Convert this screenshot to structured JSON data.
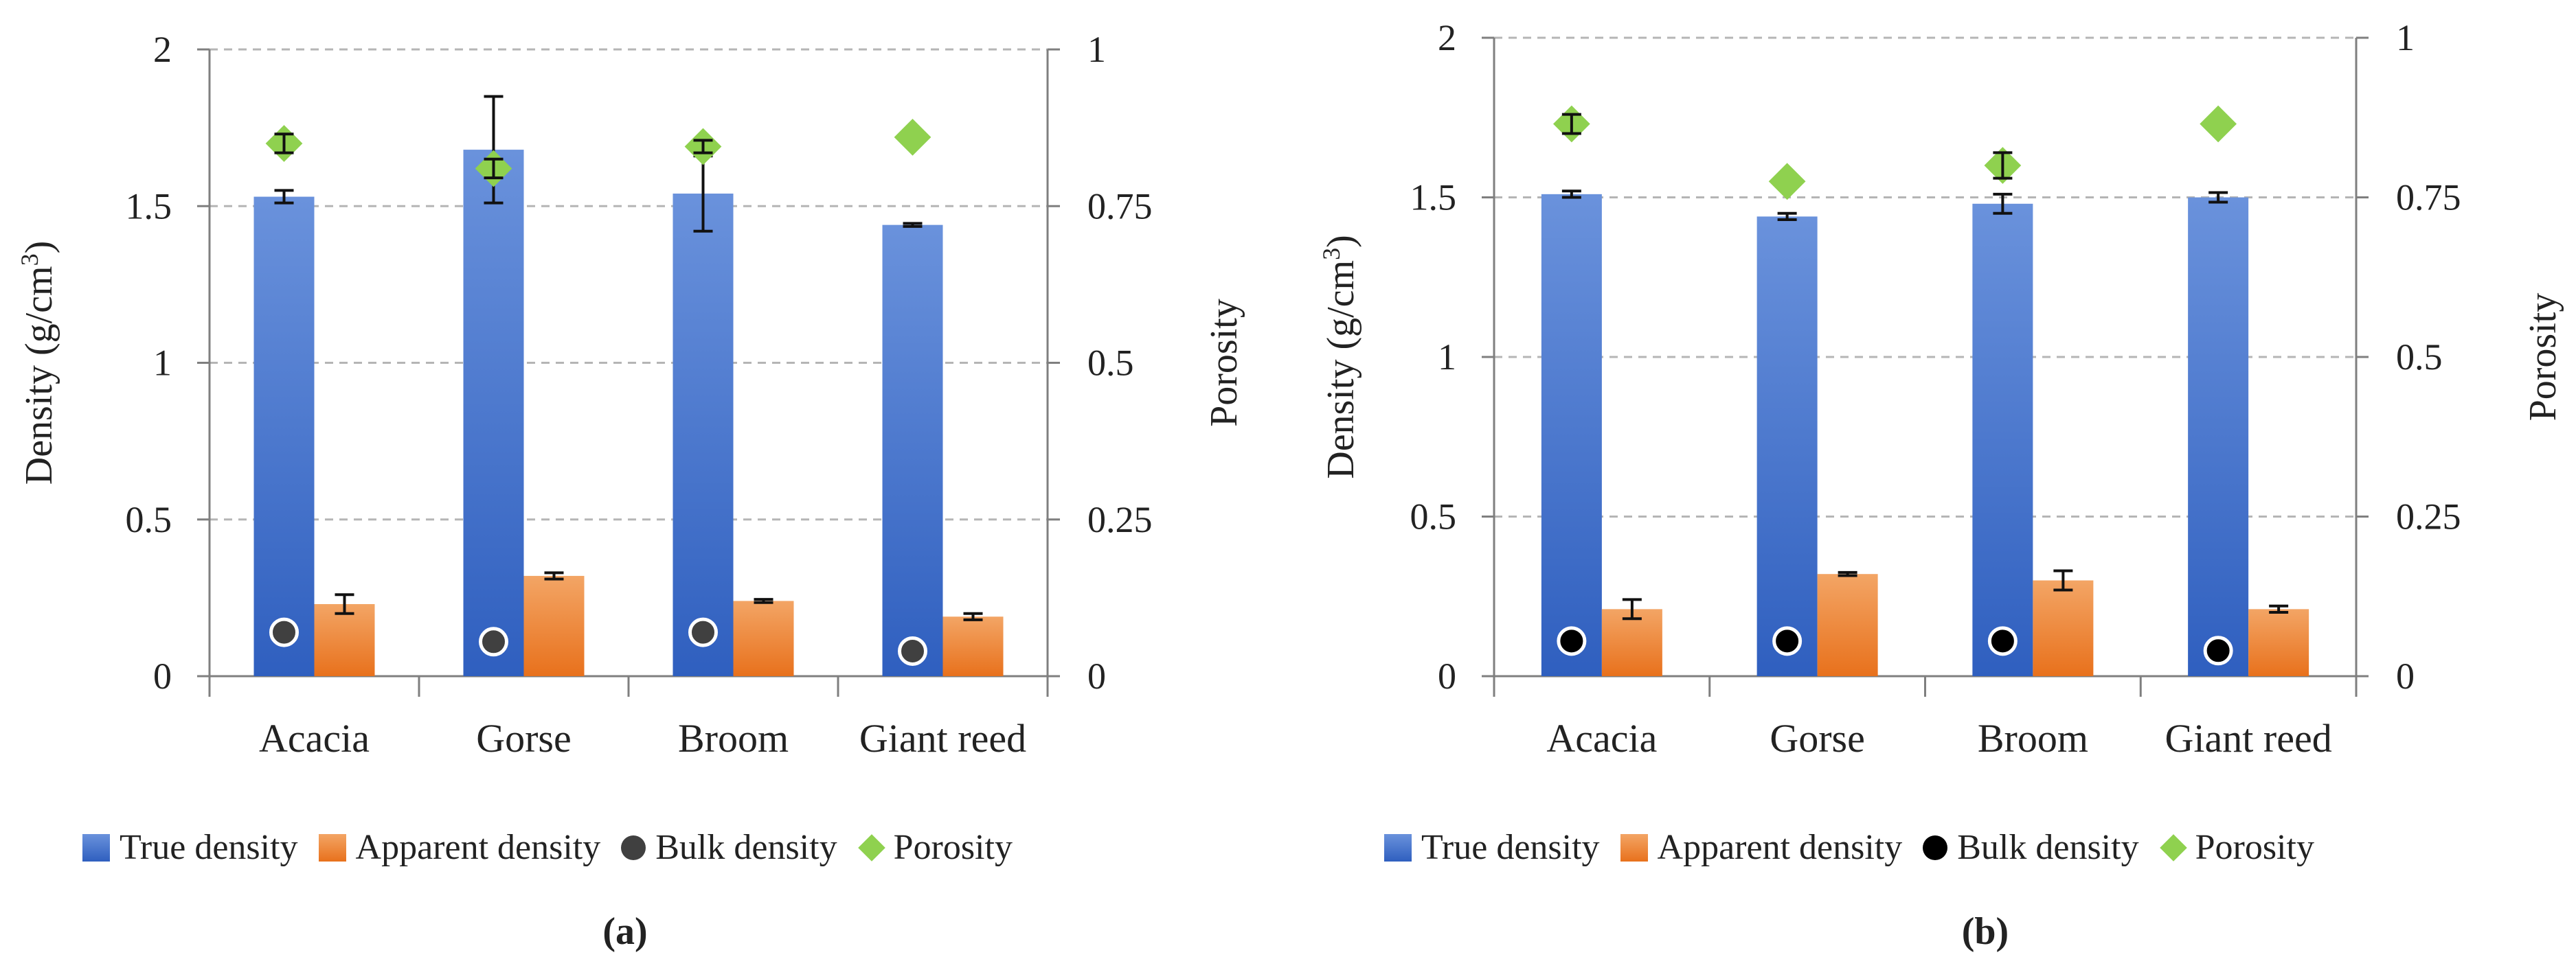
{
  "chart_data": [
    {
      "panel_label": "(a)",
      "type": "bar",
      "categories": [
        "Acacia",
        "Gorse",
        "Broom",
        "Giant reed"
      ],
      "ylabel": "Density (g/cm",
      "ylabel_sup": "3",
      "ylabel_close": ")",
      "y2label": "Porosity",
      "ylim": [
        0,
        2
      ],
      "y2lim": [
        0,
        1
      ],
      "y_ticks": [
        "0",
        "0.5",
        "1",
        "1.5",
        "2"
      ],
      "y2_ticks": [
        "0",
        "0.25",
        "0.5",
        "0.75",
        "1"
      ],
      "grid": "horizontal dashed",
      "legend": [
        "True density",
        "Apparent density",
        "Bulk density",
        "Porosity"
      ],
      "series": [
        {
          "name": "True density",
          "kind": "bar",
          "axis": "left",
          "values": [
            1.53,
            1.68,
            1.54,
            1.44
          ],
          "errors": [
            0.02,
            0.17,
            0.12,
            0.005
          ]
        },
        {
          "name": "Apparent density",
          "kind": "bar",
          "axis": "left",
          "values": [
            0.23,
            0.32,
            0.24,
            0.19
          ],
          "errors": [
            0.03,
            0.01,
            0.005,
            0.01
          ]
        },
        {
          "name": "Bulk density",
          "kind": "point",
          "axis": "left",
          "values": [
            0.14,
            0.11,
            0.14,
            0.08
          ]
        },
        {
          "name": "Porosity",
          "kind": "point",
          "axis": "right",
          "values": [
            0.85,
            0.81,
            0.845,
            0.86
          ],
          "errors": [
            0.015,
            0.015,
            0.01,
            0
          ]
        }
      ]
    },
    {
      "panel_label": "(b)",
      "type": "bar",
      "categories": [
        "Acacia",
        "Gorse",
        "Broom",
        "Giant reed"
      ],
      "ylabel": "Density (g/cm",
      "ylabel_sup": "3",
      "ylabel_close": ")",
      "y2label": "Porosity",
      "ylim": [
        0,
        2
      ],
      "y2lim": [
        0,
        1
      ],
      "y_ticks": [
        "0",
        "0.5",
        "1",
        "1.5",
        "2"
      ],
      "y2_ticks": [
        "0",
        "0.25",
        "0.5",
        "0.75",
        "1"
      ],
      "grid": "horizontal dashed",
      "legend": [
        "True density",
        "Apparent density",
        "Bulk density",
        "Porosity"
      ],
      "series": [
        {
          "name": "True density",
          "kind": "bar",
          "axis": "left",
          "values": [
            1.51,
            1.44,
            1.48,
            1.5
          ],
          "errors": [
            0.01,
            0.01,
            0.03,
            0.015
          ]
        },
        {
          "name": "Apparent density",
          "kind": "bar",
          "axis": "left",
          "values": [
            0.21,
            0.32,
            0.3,
            0.21
          ],
          "errors": [
            0.03,
            0.005,
            0.03,
            0.01
          ]
        },
        {
          "name": "Bulk density",
          "kind": "point",
          "axis": "left",
          "values": [
            0.11,
            0.11,
            0.11,
            0.08
          ]
        },
        {
          "name": "Porosity",
          "kind": "point",
          "axis": "right",
          "values": [
            0.865,
            0.775,
            0.8,
            0.865
          ],
          "errors": [
            0.015,
            0,
            0.02,
            0
          ]
        }
      ]
    }
  ],
  "colors": {
    "true_density_top": "#6a92dc",
    "true_density_bottom": "#2f5fbf",
    "apparent_density_top": "#f3a565",
    "apparent_density_bottom": "#e8711c",
    "bulk_density_a": "#404040",
    "bulk_density_b": "#000000",
    "porosity": "#8fd14f",
    "grid": "#b5b5b5",
    "axis": "#7f7f7f"
  }
}
